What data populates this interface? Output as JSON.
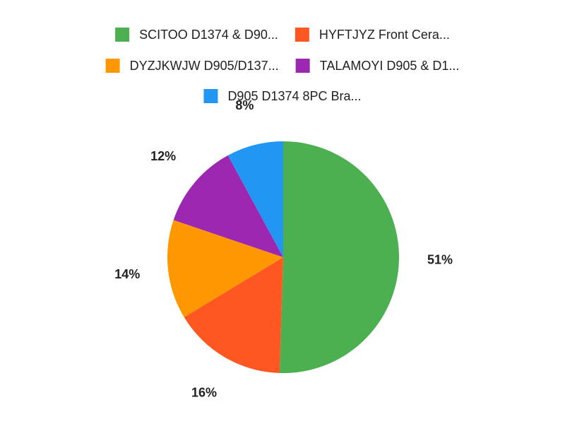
{
  "chart_data": {
    "type": "pie",
    "title": "",
    "start_angle_deg": 0,
    "direction": "clockwise",
    "legend_position": "top",
    "slices": [
      {
        "label": "SCITOO D1374 & D90...",
        "value": 51,
        "display": "51%",
        "color": "#4CAF50"
      },
      {
        "label": "HYFTJYZ Front Cera...",
        "value": 16,
        "display": "16%",
        "color": "#FF5722"
      },
      {
        "label": "DYZJKWJW D905/D137...",
        "value": 14,
        "display": "14%",
        "color": "#FF9800"
      },
      {
        "label": "TALAMOYI D905 & D1...",
        "value": 12,
        "display": "12%",
        "color": "#9C27B0"
      },
      {
        "label": "D905 D1374 8PC Bra...",
        "value": 8,
        "display": "8%",
        "color": "#2196F3"
      }
    ]
  }
}
